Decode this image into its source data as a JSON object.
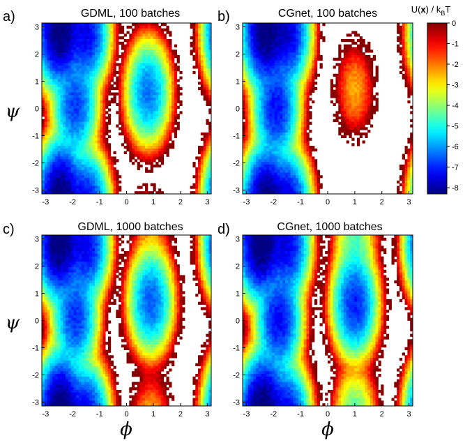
{
  "colorbar": {
    "title_main": "U(",
    "title_bold": "x",
    "title_tail": ") / k",
    "title_sub": "B",
    "title_end": "T",
    "ticks": [
      "0",
      "-1",
      "-2",
      "-3",
      "-4",
      "-5",
      "-6",
      "-7",
      "-8"
    ],
    "range": [
      -8.3,
      0
    ],
    "colormap": "jet"
  },
  "chart_data": [
    {
      "type": "heatmap",
      "panel": "a)",
      "title": "GDML, 100 batches",
      "xlabel": "",
      "ylabel": "ψ",
      "x_ticks": [
        "-3",
        "-2",
        "-1",
        "0",
        "1",
        "2",
        "3"
      ],
      "y_ticks": [
        "3",
        "2",
        "1",
        "0",
        "-1",
        "-2",
        "-3"
      ],
      "xlim": [
        -3.14,
        3.14
      ],
      "ylim": [
        -3.14,
        3.14
      ],
      "basins": [
        {
          "phi": -2.5,
          "psi": 2.75,
          "depth": -8.2
        },
        {
          "phi": -1.5,
          "psi": 2.75,
          "depth": -7.4
        },
        {
          "phi": -1.9,
          "psi": 0.1,
          "depth": -6.8
        },
        {
          "phi": 0.8,
          "psi": 0.6,
          "depth": -6.3
        },
        {
          "phi": -2.4,
          "psi": -3.0,
          "depth": -7.5
        }
      ]
    },
    {
      "type": "heatmap",
      "panel": "b)",
      "title": "CGnet, 100 batches",
      "xlabel": "",
      "ylabel": "",
      "x_ticks": [
        "-3",
        "-2",
        "-1",
        "0",
        "1",
        "2",
        "3"
      ],
      "y_ticks": [
        "3",
        "2",
        "1",
        "0",
        "-1",
        "-2",
        "-3"
      ],
      "xlim": [
        -3.14,
        3.14
      ],
      "ylim": [
        -3.14,
        3.14
      ],
      "basins": [
        {
          "phi": -2.3,
          "psi": 2.75,
          "depth": -8.3
        },
        {
          "phi": -1.5,
          "psi": 2.75,
          "depth": -7.6
        },
        {
          "phi": -1.9,
          "psi": 0.0,
          "depth": -7.2
        },
        {
          "phi": 1.0,
          "psi": 0.7,
          "depth": -2.4
        },
        {
          "phi": -2.2,
          "psi": -3.0,
          "depth": -6.5
        }
      ]
    },
    {
      "type": "heatmap",
      "panel": "c)",
      "title": "GDML, 1000 batches",
      "xlabel": "ϕ",
      "ylabel": "ψ",
      "x_ticks": [
        "-3",
        "-2",
        "-1",
        "0",
        "1",
        "2",
        "3"
      ],
      "y_ticks": [
        "3",
        "2",
        "1",
        "0",
        "-1",
        "-2",
        "-3"
      ],
      "xlim": [
        -3.14,
        3.14
      ],
      "ylim": [
        -3.14,
        3.14
      ],
      "basins": [
        {
          "phi": -2.5,
          "psi": 2.75,
          "depth": -8.2
        },
        {
          "phi": -1.5,
          "psi": 2.75,
          "depth": -7.4
        },
        {
          "phi": -1.9,
          "psi": 0.1,
          "depth": -6.9
        },
        {
          "phi": 0.9,
          "psi": 0.7,
          "depth": -6.5
        },
        {
          "phi": 0.9,
          "psi": 2.8,
          "depth": -2.2
        },
        {
          "phi": -2.4,
          "psi": -3.0,
          "depth": -7.5
        }
      ]
    },
    {
      "type": "heatmap",
      "panel": "d)",
      "title": "CGnet, 1000 batches",
      "xlabel": "ϕ",
      "ylabel": "",
      "x_ticks": [
        "-3",
        "-2",
        "-1",
        "0",
        "1",
        "2",
        "3"
      ],
      "y_ticks": [
        "3",
        "2",
        "1",
        "0",
        "-1",
        "-2",
        "-3"
      ],
      "xlim": [
        -3.14,
        3.14
      ],
      "ylim": [
        -3.14,
        3.14
      ],
      "basins": [
        {
          "phi": -2.5,
          "psi": 2.75,
          "depth": -8.2
        },
        {
          "phi": -1.5,
          "psi": 2.75,
          "depth": -7.4
        },
        {
          "phi": -1.8,
          "psi": 0.0,
          "depth": -7.3
        },
        {
          "phi": 1.0,
          "psi": 0.6,
          "depth": -7.0
        },
        {
          "phi": 1.0,
          "psi": 2.8,
          "depth": -4.5
        },
        {
          "phi": -2.3,
          "psi": -3.0,
          "depth": -7.6
        }
      ]
    }
  ]
}
